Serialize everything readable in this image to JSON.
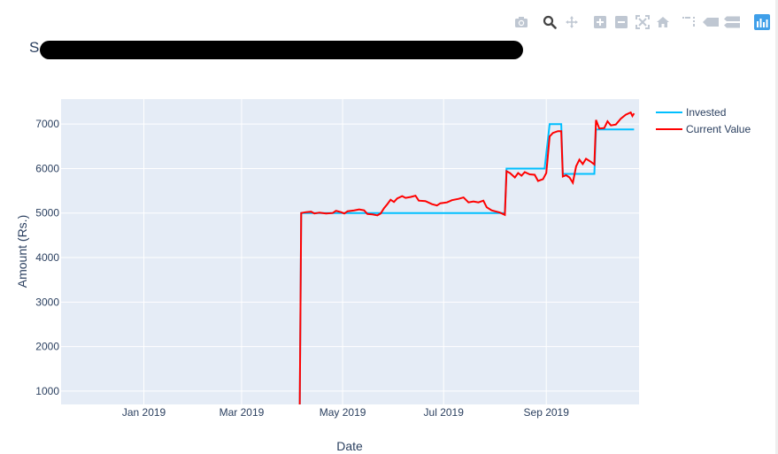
{
  "modebar": [
    {
      "name": "download-plot-icon",
      "title": "Download plot as a png"
    },
    {
      "name": "zoom-icon",
      "title": "Zoom"
    },
    {
      "name": "pan-icon",
      "title": "Pan"
    },
    {
      "name": "zoom-in-icon",
      "title": "Zoom in"
    },
    {
      "name": "zoom-out-icon",
      "title": "Zoom out"
    },
    {
      "name": "autoscale-icon",
      "title": "Autoscale"
    },
    {
      "name": "reset-axes-icon",
      "title": "Reset axes"
    },
    {
      "name": "spike-lines-icon",
      "title": "Toggle Spike Lines"
    },
    {
      "name": "hover-closest-icon",
      "title": "Show closest data on hover"
    },
    {
      "name": "hover-compare-icon",
      "title": "Compare data on hover"
    },
    {
      "name": "plotly-logo-icon",
      "title": "Produced with Plotly"
    }
  ],
  "colors": {
    "plot_bg": "#e5ecf6",
    "grid": "#ffffff",
    "invested": "#00bfff",
    "current": "#ff0000",
    "text": "#2a3f5f",
    "modebar_icon": "#bfc7d2",
    "modebar_active": "#444444",
    "plotly_logo": "#3f9fe9"
  },
  "chart_data": {
    "type": "line",
    "title": "S",
    "xlabel": "Date",
    "ylabel": "Amount (Rs.)",
    "xlim": [
      "2018-11-12",
      "2019-10-27"
    ],
    "ylim": [
      700,
      7560
    ],
    "x_ticks": [
      {
        "date": "2019-01-01",
        "label": "Jan 2019"
      },
      {
        "date": "2019-03-01",
        "label": "Mar 2019"
      },
      {
        "date": "2019-05-01",
        "label": "May 2019"
      },
      {
        "date": "2019-07-01",
        "label": "Jul 2019"
      },
      {
        "date": "2019-09-01",
        "label": "Sep 2019"
      }
    ],
    "y_ticks": [
      1000,
      2000,
      3000,
      4000,
      5000,
      6000,
      7000
    ],
    "grid": true,
    "legend_position": "top-right",
    "series": [
      {
        "name": "Invested",
        "color": "#00bfff",
        "points": [
          [
            "2019-04-05",
            0
          ],
          [
            "2019-04-06",
            5000
          ],
          [
            "2019-08-07",
            5000
          ],
          [
            "2019-08-08",
            6000
          ],
          [
            "2019-08-31",
            6000
          ],
          [
            "2019-09-03",
            7000
          ],
          [
            "2019-09-10",
            7000
          ],
          [
            "2019-09-11",
            5880
          ],
          [
            "2019-09-30",
            5880
          ],
          [
            "2019-10-01",
            6880
          ],
          [
            "2019-10-24",
            6880
          ]
        ]
      },
      {
        "name": "Current Value",
        "color": "#ff0000",
        "points": [
          [
            "2019-04-05",
            0
          ],
          [
            "2019-04-06",
            5000
          ],
          [
            "2019-04-09",
            5020
          ],
          [
            "2019-04-12",
            5030
          ],
          [
            "2019-04-14",
            4990
          ],
          [
            "2019-04-17",
            5010
          ],
          [
            "2019-04-21",
            4990
          ],
          [
            "2019-04-25",
            5000
          ],
          [
            "2019-04-27",
            5050
          ],
          [
            "2019-04-30",
            5020
          ],
          [
            "2019-05-02",
            4990
          ],
          [
            "2019-05-04",
            5040
          ],
          [
            "2019-05-08",
            5060
          ],
          [
            "2019-05-11",
            5080
          ],
          [
            "2019-05-14",
            5060
          ],
          [
            "2019-05-16",
            4980
          ],
          [
            "2019-05-19",
            4970
          ],
          [
            "2019-05-22",
            4950
          ],
          [
            "2019-05-24",
            4990
          ],
          [
            "2019-05-26",
            5110
          ],
          [
            "2019-05-28",
            5200
          ],
          [
            "2019-05-30",
            5300
          ],
          [
            "2019-06-01",
            5250
          ],
          [
            "2019-06-03",
            5330
          ],
          [
            "2019-06-06",
            5380
          ],
          [
            "2019-06-08",
            5340
          ],
          [
            "2019-06-11",
            5360
          ],
          [
            "2019-06-14",
            5390
          ],
          [
            "2019-06-16",
            5280
          ],
          [
            "2019-06-20",
            5270
          ],
          [
            "2019-06-24",
            5200
          ],
          [
            "2019-06-27",
            5170
          ],
          [
            "2019-06-29",
            5220
          ],
          [
            "2019-07-03",
            5240
          ],
          [
            "2019-07-06",
            5290
          ],
          [
            "2019-07-10",
            5320
          ],
          [
            "2019-07-13",
            5350
          ],
          [
            "2019-07-16",
            5240
          ],
          [
            "2019-07-19",
            5260
          ],
          [
            "2019-07-22",
            5240
          ],
          [
            "2019-07-25",
            5280
          ],
          [
            "2019-07-27",
            5130
          ],
          [
            "2019-07-30",
            5060
          ],
          [
            "2019-08-01",
            5040
          ],
          [
            "2019-08-04",
            5010
          ],
          [
            "2019-08-07",
            4960
          ],
          [
            "2019-08-08",
            5940
          ],
          [
            "2019-08-10",
            5900
          ],
          [
            "2019-08-13",
            5800
          ],
          [
            "2019-08-15",
            5900
          ],
          [
            "2019-08-17",
            5840
          ],
          [
            "2019-08-19",
            5920
          ],
          [
            "2019-08-22",
            5870
          ],
          [
            "2019-08-25",
            5860
          ],
          [
            "2019-08-27",
            5720
          ],
          [
            "2019-08-30",
            5760
          ],
          [
            "2019-09-01",
            5900
          ],
          [
            "2019-09-03",
            6720
          ],
          [
            "2019-09-05",
            6800
          ],
          [
            "2019-09-08",
            6840
          ],
          [
            "2019-09-10",
            6840
          ],
          [
            "2019-09-11",
            5820
          ],
          [
            "2019-09-13",
            5850
          ],
          [
            "2019-09-15",
            5800
          ],
          [
            "2019-09-17",
            5680
          ],
          [
            "2019-09-19",
            6050
          ],
          [
            "2019-09-21",
            6200
          ],
          [
            "2019-09-23",
            6100
          ],
          [
            "2019-09-25",
            6220
          ],
          [
            "2019-09-28",
            6150
          ],
          [
            "2019-09-30",
            6090
          ],
          [
            "2019-10-01",
            7090
          ],
          [
            "2019-10-03",
            6900
          ],
          [
            "2019-10-06",
            6910
          ],
          [
            "2019-10-08",
            7060
          ],
          [
            "2019-10-10",
            6970
          ],
          [
            "2019-10-13",
            6990
          ],
          [
            "2019-10-16",
            7120
          ],
          [
            "2019-10-19",
            7210
          ],
          [
            "2019-10-22",
            7260
          ],
          [
            "2019-10-23",
            7180
          ],
          [
            "2019-10-24",
            7240
          ]
        ]
      }
    ]
  }
}
